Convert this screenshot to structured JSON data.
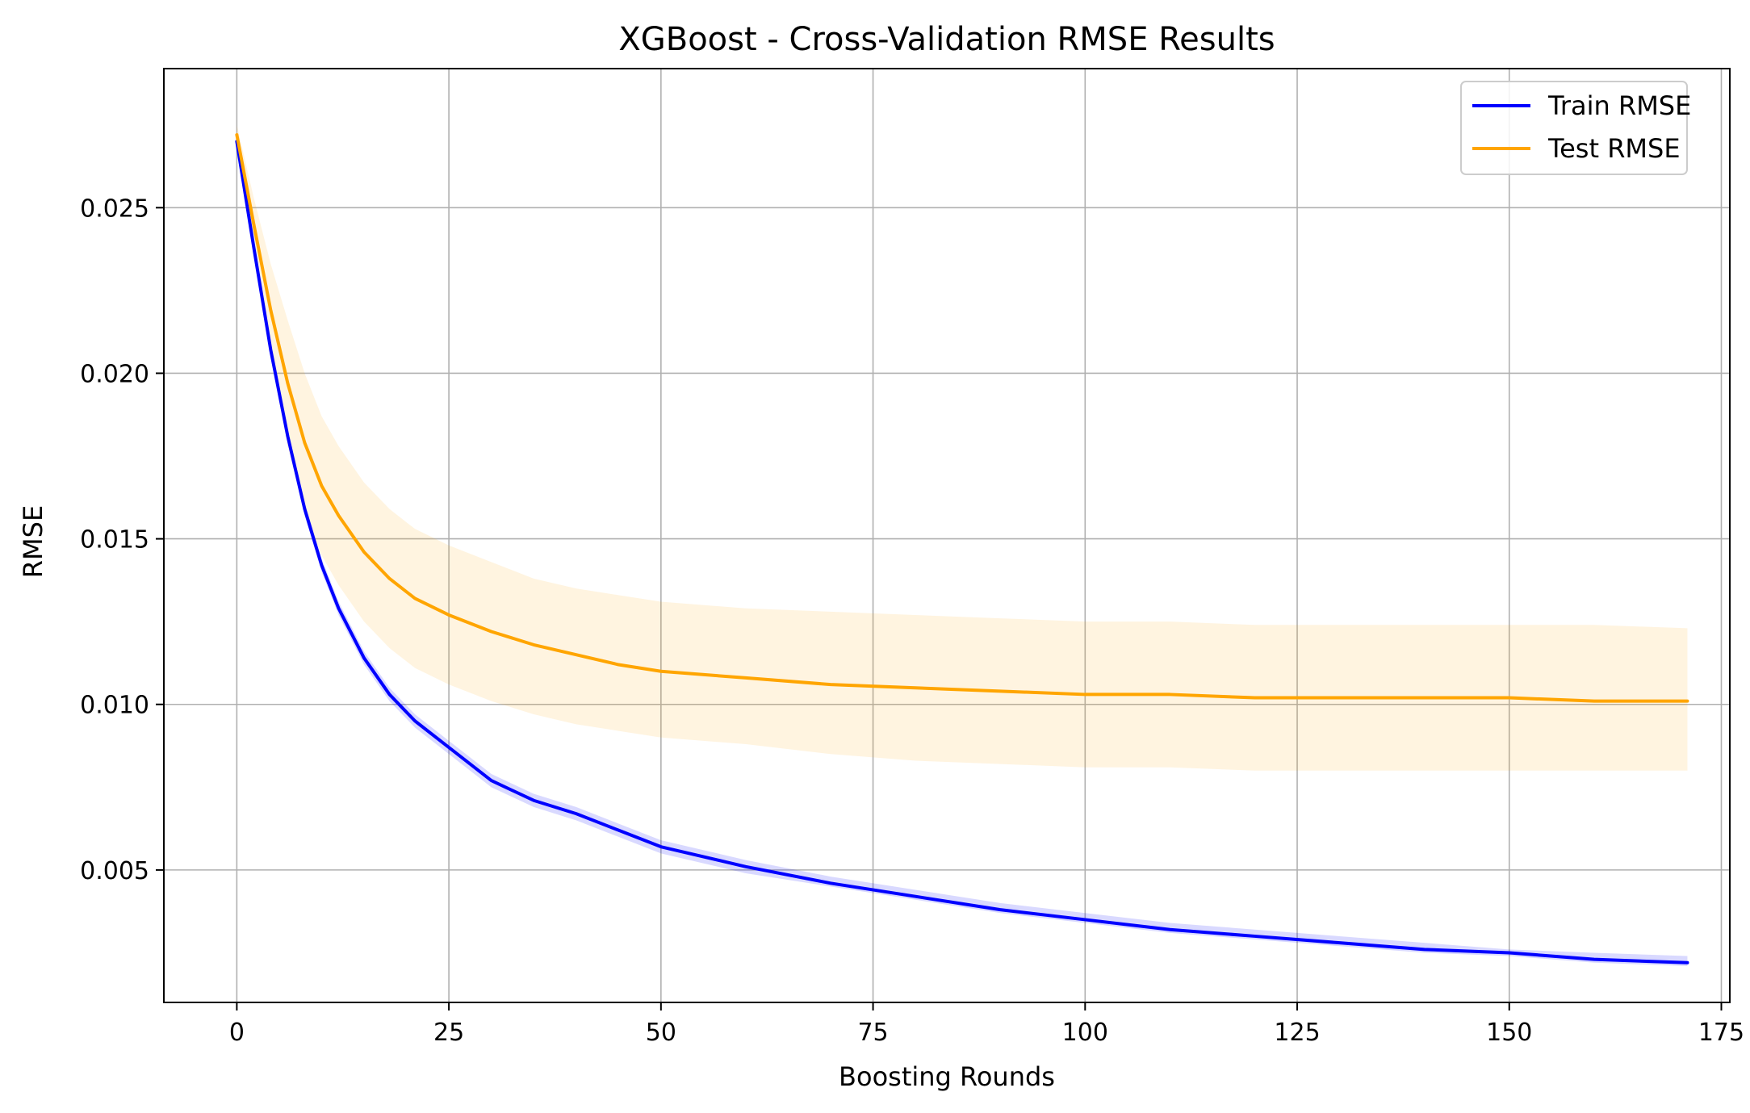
{
  "colors": {
    "train": "#0000ff",
    "test": "#ffa500",
    "grid": "#b0b0b0",
    "axis": "#000000",
    "background": "#ffffff"
  },
  "chart_data": {
    "type": "line",
    "title": "XGBoost - Cross-Validation RMSE Results",
    "xlabel": "Boosting Rounds",
    "ylabel": "RMSE",
    "xlim": [
      -8.6,
      176
    ],
    "ylim": [
      0.001,
      0.0292
    ],
    "xticks": [
      0,
      25,
      50,
      75,
      100,
      125,
      150,
      175
    ],
    "yticks": [
      0.005,
      0.01,
      0.015,
      0.02,
      0.025
    ],
    "xtick_labels": [
      "0",
      "25",
      "50",
      "75",
      "100",
      "125",
      "150",
      "175"
    ],
    "ytick_labels": [
      "0.005",
      "0.010",
      "0.015",
      "0.020",
      "0.025"
    ],
    "grid": true,
    "legend_position": "top-right",
    "x": [
      0,
      2,
      4,
      6,
      8,
      10,
      12,
      15,
      18,
      21,
      25,
      30,
      35,
      40,
      45,
      50,
      60,
      70,
      80,
      90,
      100,
      110,
      120,
      130,
      140,
      150,
      160,
      171
    ],
    "series": [
      {
        "name": "Train RMSE",
        "color": "#0000ff",
        "values": [
          0.027,
          0.0238,
          0.0207,
          0.0181,
          0.0159,
          0.0142,
          0.0129,
          0.0114,
          0.0103,
          0.0095,
          0.0087,
          0.0077,
          0.0071,
          0.0067,
          0.0062,
          0.0057,
          0.0051,
          0.0046,
          0.0042,
          0.0038,
          0.0035,
          0.0032,
          0.003,
          0.0028,
          0.0026,
          0.0025,
          0.0023,
          0.0022
        ],
        "band_lower": [
          0.0269,
          0.0236,
          0.0205,
          0.0179,
          0.0157,
          0.014,
          0.0127,
          0.0112,
          0.0101,
          0.0093,
          0.0085,
          0.0075,
          0.0069,
          0.0065,
          0.006,
          0.0055,
          0.0049,
          0.0045,
          0.0041,
          0.0037,
          0.0034,
          0.0031,
          0.0029,
          0.0027,
          0.0025,
          0.0024,
          0.0022,
          0.0021
        ],
        "band_upper": [
          0.0271,
          0.024,
          0.0209,
          0.0183,
          0.0161,
          0.0144,
          0.0131,
          0.0116,
          0.0105,
          0.0097,
          0.0089,
          0.0079,
          0.0073,
          0.0069,
          0.0064,
          0.0059,
          0.0053,
          0.0048,
          0.0044,
          0.004,
          0.0037,
          0.0034,
          0.0032,
          0.003,
          0.0028,
          0.0026,
          0.0025,
          0.0024
        ]
      },
      {
        "name": "Test RMSE",
        "color": "#ffa500",
        "values": [
          0.0272,
          0.0245,
          0.0219,
          0.0197,
          0.0179,
          0.0166,
          0.0157,
          0.0146,
          0.0138,
          0.0132,
          0.0127,
          0.0122,
          0.0118,
          0.0115,
          0.0112,
          0.011,
          0.0108,
          0.0106,
          0.0105,
          0.0104,
          0.0103,
          0.0103,
          0.0102,
          0.0102,
          0.0102,
          0.0102,
          0.0101,
          0.0101
        ],
        "band_lower": [
          0.027,
          0.0237,
          0.0205,
          0.0178,
          0.0158,
          0.0145,
          0.0136,
          0.0125,
          0.0117,
          0.0111,
          0.0106,
          0.0101,
          0.0097,
          0.0094,
          0.0092,
          0.009,
          0.0088,
          0.0085,
          0.0083,
          0.0082,
          0.0081,
          0.0081,
          0.008,
          0.008,
          0.008,
          0.008,
          0.008,
          0.008
        ],
        "band_upper": [
          0.0275,
          0.0253,
          0.0233,
          0.0216,
          0.02,
          0.0187,
          0.0178,
          0.0167,
          0.0159,
          0.0153,
          0.0148,
          0.0143,
          0.0138,
          0.0135,
          0.0133,
          0.0131,
          0.0129,
          0.0128,
          0.0127,
          0.0126,
          0.0125,
          0.0125,
          0.0124,
          0.0124,
          0.0124,
          0.0124,
          0.0124,
          0.0123
        ]
      }
    ]
  }
}
